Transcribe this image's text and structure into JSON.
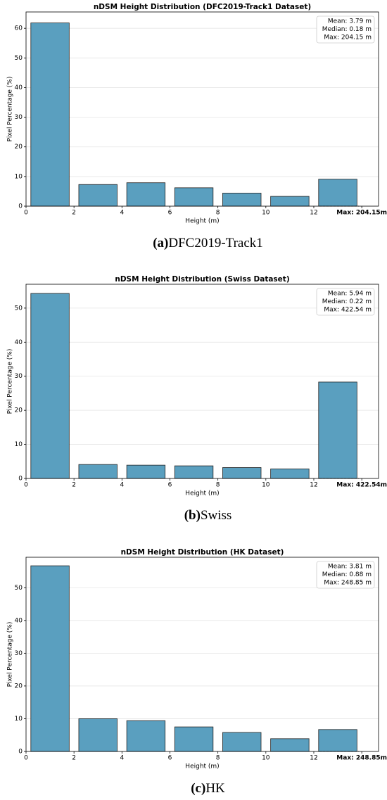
{
  "chart_data": [
    {
      "type": "histogram",
      "title": "nDSM Height Distribution (DFC2019-Track1 Dataset)",
      "x_label": "Height (m)",
      "y_label": "Pixel Percentage (%)",
      "bins": [
        0,
        2,
        4,
        6,
        8,
        10,
        12,
        14
      ],
      "values": [
        61.8,
        7.3,
        7.9,
        6.2,
        4.4,
        3.3,
        9.1
      ],
      "color": "#5a9fbf",
      "xlim": [
        0,
        14.7
      ],
      "ylim": [
        0,
        65.5
      ],
      "xticks": [
        0,
        2,
        4,
        6,
        8,
        10,
        12,
        {
          "value": 14,
          "label": "Max: 204.15m"
        }
      ],
      "yticks": [
        0,
        10,
        20,
        30,
        40,
        50,
        60
      ],
      "grid": true,
      "stats": [
        "Mean: 3.79 m",
        "Median: 0.18 m",
        "Max: 204.15 m"
      ],
      "caption_label": "(a)",
      "caption": "DFC2019-Track1"
    },
    {
      "type": "histogram",
      "title": "nDSM Height Distribution (Swiss Dataset)",
      "x_label": "Height (m)",
      "y_label": "Pixel Percentage (%)",
      "bins": [
        0,
        2,
        4,
        6,
        8,
        10,
        12,
        14
      ],
      "values": [
        54.3,
        4.1,
        3.9,
        3.7,
        3.2,
        2.8,
        28.3
      ],
      "color": "#5a9fbf",
      "xlim": [
        0,
        14.7
      ],
      "ylim": [
        0,
        57
      ],
      "xticks": [
        0,
        2,
        4,
        6,
        8,
        10,
        12,
        {
          "value": 14,
          "label": "Max: 422.54m"
        }
      ],
      "yticks": [
        0,
        10,
        20,
        30,
        40,
        50
      ],
      "grid": true,
      "stats": [
        "Mean: 5.94 m",
        "Median: 0.22 m",
        "Max: 422.54 m"
      ],
      "caption_label": "(b)",
      "caption": "Swiss"
    },
    {
      "type": "histogram",
      "title": "nDSM Height Distribution (HK Dataset)",
      "x_label": "Height (m)",
      "y_label": "Pixel Percentage (%)",
      "bins": [
        0,
        2,
        4,
        6,
        8,
        10,
        12,
        14
      ],
      "values": [
        56.7,
        10.0,
        9.4,
        7.5,
        5.8,
        3.9,
        6.7
      ],
      "color": "#5a9fbf",
      "xlim": [
        0,
        14.7
      ],
      "ylim": [
        0,
        59.3
      ],
      "xticks": [
        0,
        2,
        4,
        6,
        8,
        10,
        12,
        {
          "value": 14,
          "label": "Max: 248.85m"
        }
      ],
      "yticks": [
        0,
        10,
        20,
        30,
        40,
        50
      ],
      "grid": true,
      "stats": [
        "Mean: 3.81 m",
        "Median: 0.88 m",
        "Max: 248.85 m"
      ],
      "caption_label": "(c)",
      "caption": "HK"
    }
  ]
}
